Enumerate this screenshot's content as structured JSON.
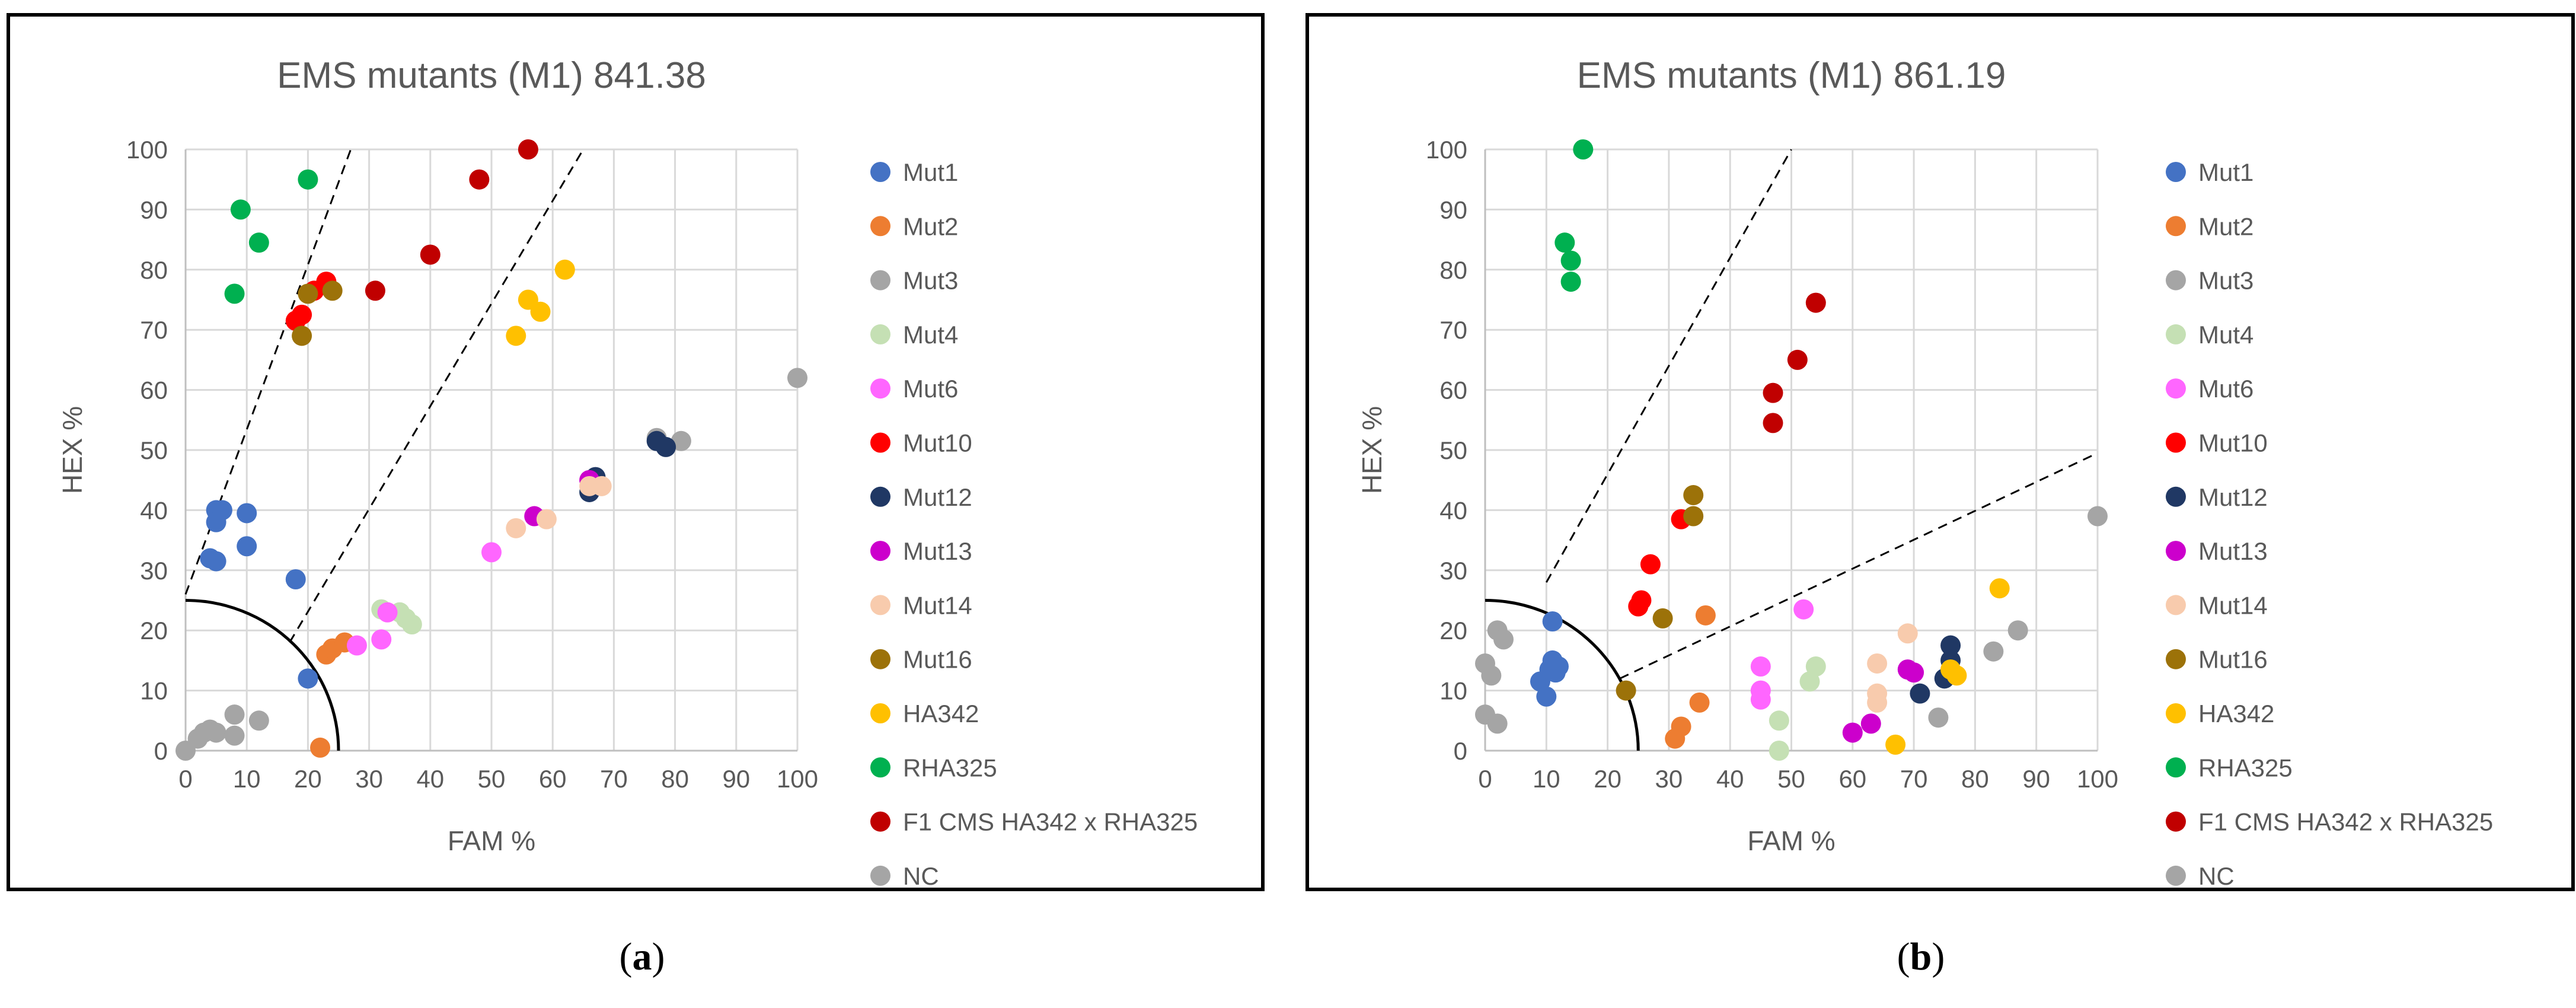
{
  "chart_data": [
    {
      "type": "scatter",
      "panel": "a",
      "caption": "(a)",
      "title": "EMS mutants (M1) 841.38",
      "xlabel": "FAM %",
      "ylabel": "HEX %",
      "xlim": [
        0,
        100
      ],
      "ylim": [
        0,
        100
      ],
      "xticks": [
        0,
        10,
        20,
        30,
        40,
        50,
        60,
        70,
        80,
        90,
        100
      ],
      "yticks": [
        0,
        10,
        20,
        30,
        40,
        50,
        60,
        70,
        80,
        90,
        100
      ],
      "grid": true,
      "legend_position": "right",
      "series": [
        {
          "name": "Mut1",
          "color": "#4472C4",
          "points": [
            [
              5,
              40
            ],
            [
              5,
              38
            ],
            [
              6,
              40
            ],
            [
              4,
              32
            ],
            [
              5,
              31.5
            ],
            [
              10,
              39.5
            ],
            [
              10,
              34
            ],
            [
              18,
              28.5
            ],
            [
              20,
              12
            ]
          ]
        },
        {
          "name": "Mut2",
          "color": "#ED7D31",
          "points": [
            [
              23,
              16
            ],
            [
              24,
              17
            ],
            [
              26,
              18
            ],
            [
              22,
              0.5
            ]
          ]
        },
        {
          "name": "Mut3",
          "color": "#A5A5A5",
          "points": [
            [
              77,
              52
            ],
            [
              81,
              51.5
            ],
            [
              100,
              62
            ]
          ]
        },
        {
          "name": "Mut4",
          "color": "#C5E0B4",
          "points": [
            [
              32,
              23.5
            ],
            [
              35,
              23
            ],
            [
              36,
              22
            ],
            [
              37,
              21
            ]
          ]
        },
        {
          "name": "Mut6",
          "color": "#FF66FF",
          "points": [
            [
              28,
              17.5
            ],
            [
              32,
              18.5
            ],
            [
              33,
              23
            ],
            [
              50,
              33
            ],
            [
              67,
              44
            ]
          ]
        },
        {
          "name": "Mut10",
          "color": "#FF0000",
          "points": [
            [
              18,
              71.5
            ],
            [
              19,
              72.5
            ],
            [
              21,
              76.5
            ],
            [
              23,
              78
            ]
          ]
        },
        {
          "name": "Mut12",
          "color": "#203864",
          "points": [
            [
              77,
              51.5
            ],
            [
              78.5,
              50.5
            ],
            [
              66,
              43
            ],
            [
              67,
              45.5
            ]
          ]
        },
        {
          "name": "Mut13",
          "color": "#CC00CC",
          "points": [
            [
              57,
              39
            ],
            [
              66,
              45
            ]
          ]
        },
        {
          "name": "Mut14",
          "color": "#F8CBAD",
          "points": [
            [
              54,
              37
            ],
            [
              59,
              38.5
            ],
            [
              66,
              44
            ],
            [
              68,
              44
            ]
          ]
        },
        {
          "name": "Mut16",
          "color": "#9C7209",
          "points": [
            [
              19,
              69
            ],
            [
              20,
              76
            ],
            [
              24,
              76.5
            ]
          ]
        },
        {
          "name": "HA342",
          "color": "#FFC000",
          "points": [
            [
              54,
              69
            ],
            [
              56,
              75
            ],
            [
              58,
              73
            ],
            [
              62,
              80
            ]
          ]
        },
        {
          "name": "RHA325",
          "color": "#00B050",
          "points": [
            [
              9,
              90
            ],
            [
              20,
              95
            ],
            [
              12,
              84.5
            ],
            [
              8,
              76
            ]
          ]
        },
        {
          "name": "F1 CMS HA342 x RHA325",
          "color": "#C00000",
          "points": [
            [
              56,
              100
            ],
            [
              48,
              95
            ],
            [
              40,
              82.5
            ],
            [
              31,
              76.5
            ]
          ]
        },
        {
          "name": "NC",
          "color": "#A5A5A5",
          "points": [
            [
              0,
              0
            ],
            [
              2,
              2
            ],
            [
              3,
              3
            ],
            [
              4,
              3.5
            ],
            [
              5,
              3
            ],
            [
              8,
              2.5
            ],
            [
              8,
              6
            ],
            [
              12,
              5
            ]
          ]
        }
      ]
    },
    {
      "type": "scatter",
      "panel": "b",
      "caption": "(b)",
      "title": "EMS mutants (M1) 861.19",
      "xlabel": "FAM %",
      "ylabel": "HEX %",
      "xlim": [
        0,
        100
      ],
      "ylim": [
        0,
        100
      ],
      "xticks": [
        0,
        10,
        20,
        30,
        40,
        50,
        60,
        70,
        80,
        90,
        100
      ],
      "yticks": [
        0,
        10,
        20,
        30,
        40,
        50,
        60,
        70,
        80,
        90,
        100
      ],
      "grid": true,
      "legend_position": "right",
      "series": [
        {
          "name": "Mut1",
          "color": "#4472C4",
          "points": [
            [
              9,
              11.5
            ],
            [
              10,
              9
            ],
            [
              10.5,
              13.5
            ],
            [
              11,
              15
            ],
            [
              11.5,
              13
            ],
            [
              12,
              14
            ],
            [
              11,
              21.5
            ]
          ]
        },
        {
          "name": "Mut2",
          "color": "#ED7D31",
          "points": [
            [
              31,
              2
            ],
            [
              32,
              4
            ],
            [
              35,
              8
            ],
            [
              36,
              22.5
            ]
          ]
        },
        {
          "name": "Mut3",
          "color": "#A5A5A5",
          "points": [
            [
              74,
              5.5
            ],
            [
              83,
              16.5
            ],
            [
              87,
              20
            ],
            [
              100,
              39
            ]
          ]
        },
        {
          "name": "Mut4",
          "color": "#C5E0B4",
          "points": [
            [
              48,
              5
            ],
            [
              48,
              0
            ],
            [
              53,
              11.5
            ],
            [
              54,
              14
            ]
          ]
        },
        {
          "name": "Mut6",
          "color": "#FF66FF",
          "points": [
            [
              45,
              8.5
            ],
            [
              45,
              10
            ],
            [
              45,
              14
            ],
            [
              52,
              23.5
            ]
          ]
        },
        {
          "name": "Mut10",
          "color": "#FF0000",
          "points": [
            [
              25,
              24
            ],
            [
              25.5,
              25
            ],
            [
              27,
              31
            ],
            [
              32,
              38.5
            ]
          ]
        },
        {
          "name": "Mut12",
          "color": "#203864",
          "points": [
            [
              71,
              9.5
            ],
            [
              75,
              12
            ],
            [
              76,
              15
            ],
            [
              76,
              17.5
            ]
          ]
        },
        {
          "name": "Mut13",
          "color": "#CC00CC",
          "points": [
            [
              60,
              3
            ],
            [
              63,
              4.5
            ],
            [
              69,
              13.5
            ],
            [
              70,
              13
            ]
          ]
        },
        {
          "name": "Mut14",
          "color": "#F8CBAD",
          "points": [
            [
              64,
              8
            ],
            [
              64,
              9.5
            ],
            [
              64,
              14.5
            ],
            [
              69,
              19.5
            ]
          ]
        },
        {
          "name": "Mut16",
          "color": "#9C7209",
          "points": [
            [
              23,
              10
            ],
            [
              29,
              22
            ],
            [
              34,
              39
            ],
            [
              34,
              42.5
            ]
          ]
        },
        {
          "name": "HA342",
          "color": "#FFC000",
          "points": [
            [
              67,
              1
            ],
            [
              76,
              13.5
            ],
            [
              77,
              12.5
            ],
            [
              84,
              27
            ]
          ]
        },
        {
          "name": "RHA325",
          "color": "#00B050",
          "points": [
            [
              16,
              100
            ],
            [
              13,
              84.5
            ],
            [
              14,
              81.5
            ],
            [
              14,
              78
            ]
          ]
        },
        {
          "name": "F1 CMS HA342 x RHA325",
          "color": "#C00000",
          "points": [
            [
              54,
              74.5
            ],
            [
              51,
              65
            ],
            [
              47,
              59.5
            ],
            [
              47,
              54.5
            ]
          ]
        },
        {
          "name": "NC",
          "color": "#A5A5A5",
          "points": [
            [
              0,
              14.5
            ],
            [
              0,
              6
            ],
            [
              1,
              12.5
            ],
            [
              2,
              4.5
            ],
            [
              2,
              20
            ],
            [
              3,
              18.5
            ]
          ]
        }
      ]
    }
  ]
}
